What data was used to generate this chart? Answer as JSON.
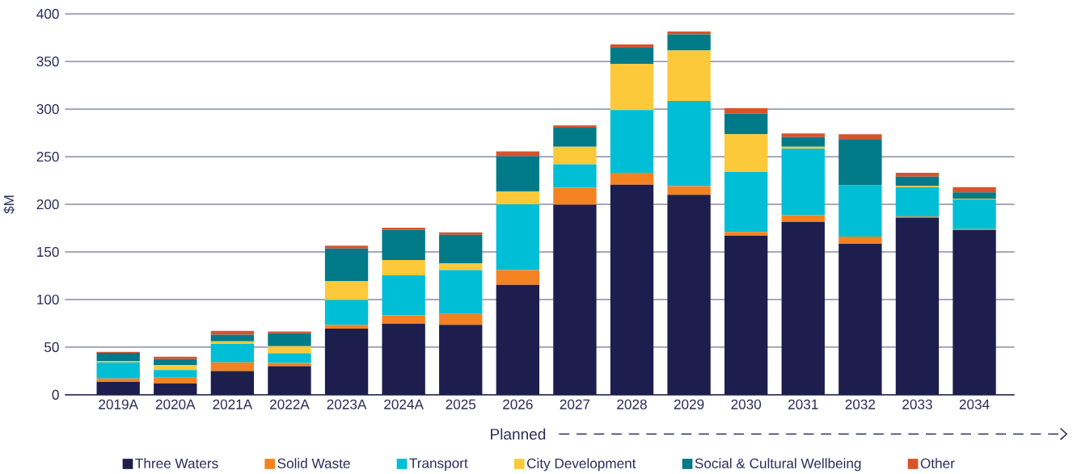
{
  "chart_data": {
    "type": "bar",
    "stacked": true,
    "ylabel": "$M",
    "categories": [
      "2019A",
      "2020A",
      "2021A",
      "2022A",
      "2023A",
      "2024A",
      "2025",
      "2026",
      "2027",
      "2028",
      "2029",
      "2030",
      "2031",
      "2032",
      "2033",
      "2034"
    ],
    "series": [
      {
        "name": "Three Waters",
        "color": "#1d1e4e",
        "values": [
          13.5,
          12,
          25,
          30,
          69.5,
          74.5,
          73.5,
          115.5,
          199.5,
          220.5,
          210,
          167,
          181.5,
          158.5,
          186,
          173
        ]
      },
      {
        "name": "Solid Waste",
        "color": "#f58220",
        "values": [
          3.5,
          6,
          9,
          3.5,
          4,
          9,
          11.5,
          15.5,
          18,
          12.5,
          9,
          4,
          7,
          7.5,
          1,
          1
        ]
      },
      {
        "name": "Transport",
        "color": "#00bed5",
        "values": [
          17,
          8,
          19.5,
          10,
          26,
          42,
          46,
          69,
          24.5,
          66,
          89.5,
          63,
          70,
          54,
          31,
          31
        ]
      },
      {
        "name": "City Development",
        "color": "#fcc93a",
        "values": [
          1,
          5,
          2.5,
          7.5,
          20,
          16,
          7,
          13.5,
          18.5,
          48.5,
          53,
          39.5,
          2,
          0,
          1.5,
          1
        ]
      },
      {
        "name": "Social & Cultural Wellbeing",
        "color": "#007a87",
        "values": [
          9,
          6.5,
          7,
          13.5,
          34,
          31.5,
          30,
          37,
          20,
          17,
          17,
          22,
          10,
          48.5,
          9.5,
          6.5
        ]
      },
      {
        "name": "Other",
        "color": "#d9532a",
        "values": [
          1,
          2.5,
          4,
          2,
          3,
          2.5,
          2.5,
          5,
          2.5,
          3.5,
          3,
          5.5,
          4,
          5,
          4,
          5.5
        ]
      }
    ],
    "ylim": [
      0,
      400
    ],
    "yticks": [
      0,
      50,
      100,
      150,
      200,
      250,
      300,
      350,
      400
    ],
    "grid": "y",
    "legend": "bottom",
    "annotations": [
      "Planned"
    ]
  }
}
